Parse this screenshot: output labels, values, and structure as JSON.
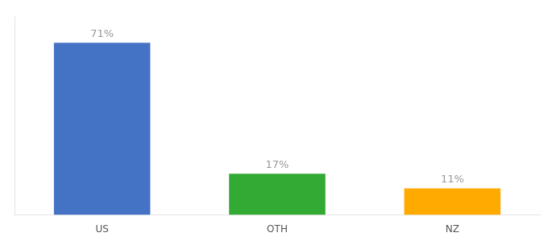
{
  "chart_data": {
    "type": "bar",
    "categories": [
      "US",
      "OTH",
      "NZ"
    ],
    "values": [
      71,
      17,
      11
    ],
    "value_labels": [
      "71%",
      "17%",
      "11%"
    ],
    "colors": [
      "#4472c4",
      "#33aa33",
      "#ffaa00"
    ],
    "data_labels": true,
    "ylim": [
      0,
      82
    ],
    "tick_labels": "x",
    "grid": false
  }
}
